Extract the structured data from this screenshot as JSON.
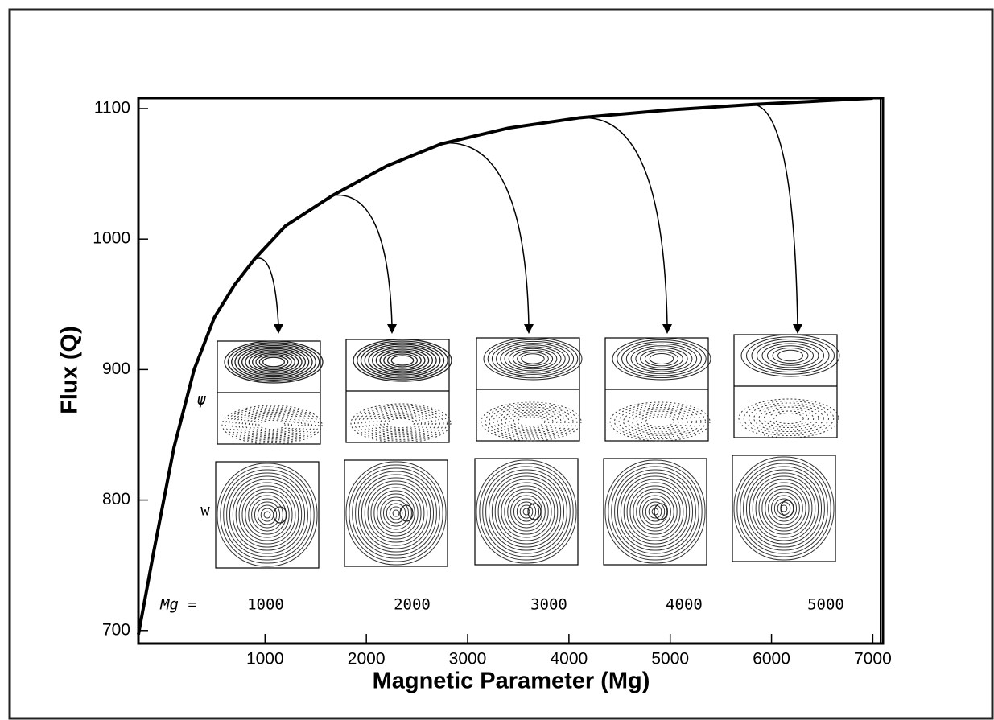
{
  "chart_data": {
    "type": "line",
    "xlabel": "Magnetic Parameter (Mg)",
    "ylabel": "Flux (Q)",
    "x": [
      -250,
      -100,
      100,
      300,
      500,
      700,
      900,
      1200,
      1657,
      2200,
      2741,
      3400,
      4112,
      5000,
      5785,
      7000
    ],
    "series": [
      {
        "color": "#000000",
        "values": [
          697,
          760,
          840,
          900,
          940,
          965,
          985,
          1010,
          1033,
          1056,
          1073,
          1085,
          1093,
          1099,
          1103,
          1108
        ]
      }
    ],
    "xlim": [
      -250,
      7100
    ],
    "ylim": [
      690,
      1108
    ],
    "xticks": [
      1000,
      2000,
      3000,
      4000,
      5000,
      6000,
      7000
    ],
    "yticks": [
      700,
      800,
      900,
      1000,
      1100
    ],
    "annotations": [
      "ψ",
      "w",
      "Mg =",
      "1000",
      "2000",
      "3000",
      "4000",
      "5000"
    ]
  }
}
